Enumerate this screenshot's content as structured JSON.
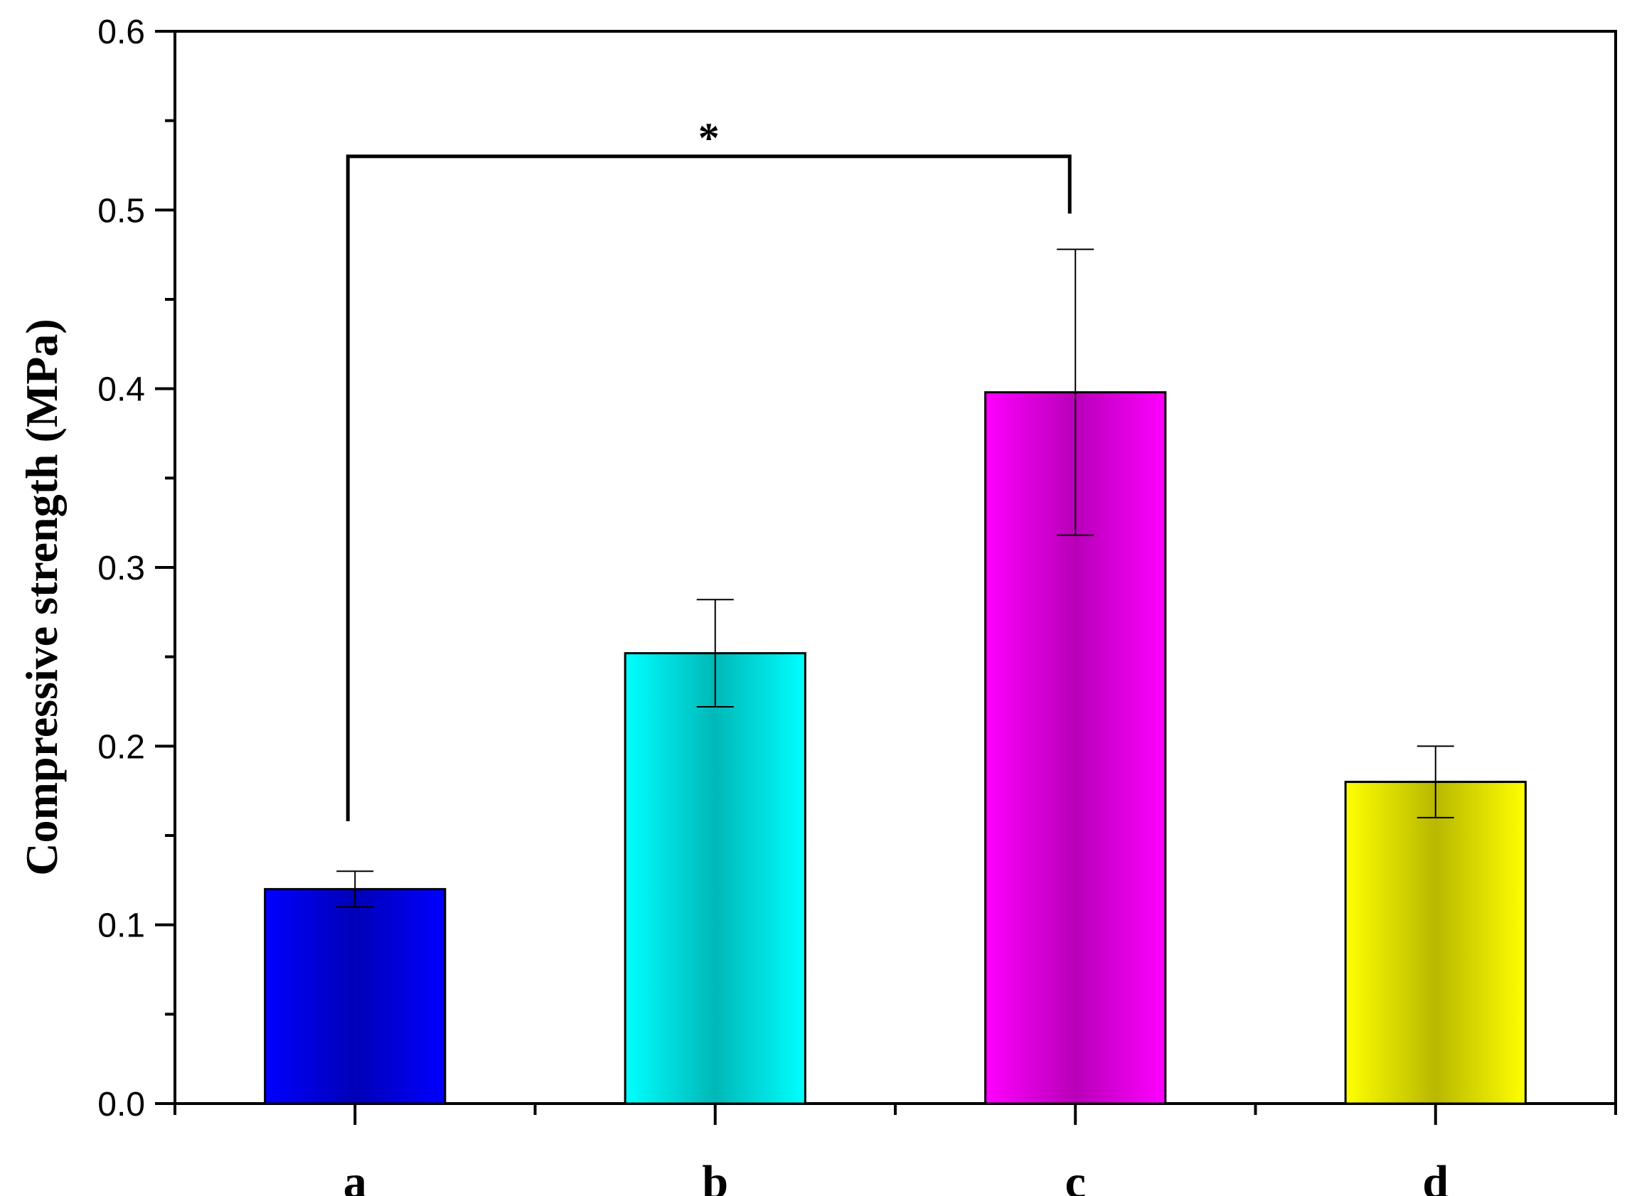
{
  "chart_data": {
    "type": "bar",
    "title": "",
    "xlabel": "",
    "ylabel": "Compressive strength (MPa)",
    "categories": [
      "a",
      "b",
      "c",
      "d"
    ],
    "values": [
      0.12,
      0.252,
      0.398,
      0.18
    ],
    "errors": [
      0.01,
      0.03,
      0.08,
      0.02
    ],
    "colors": [
      "#0000ff",
      "#00ffff",
      "#ff00ff",
      "#ffff00"
    ],
    "ylim": [
      0,
      0.6
    ],
    "yticks": [
      "0.0",
      "0.1",
      "0.2",
      "0.3",
      "0.4",
      "0.5",
      "0.6"
    ],
    "grid": false,
    "annotation": {
      "label": "*",
      "from_category": "a",
      "to_category": "c",
      "level": 0.53,
      "left_end": 0.158,
      "right_end": 0.498
    }
  }
}
